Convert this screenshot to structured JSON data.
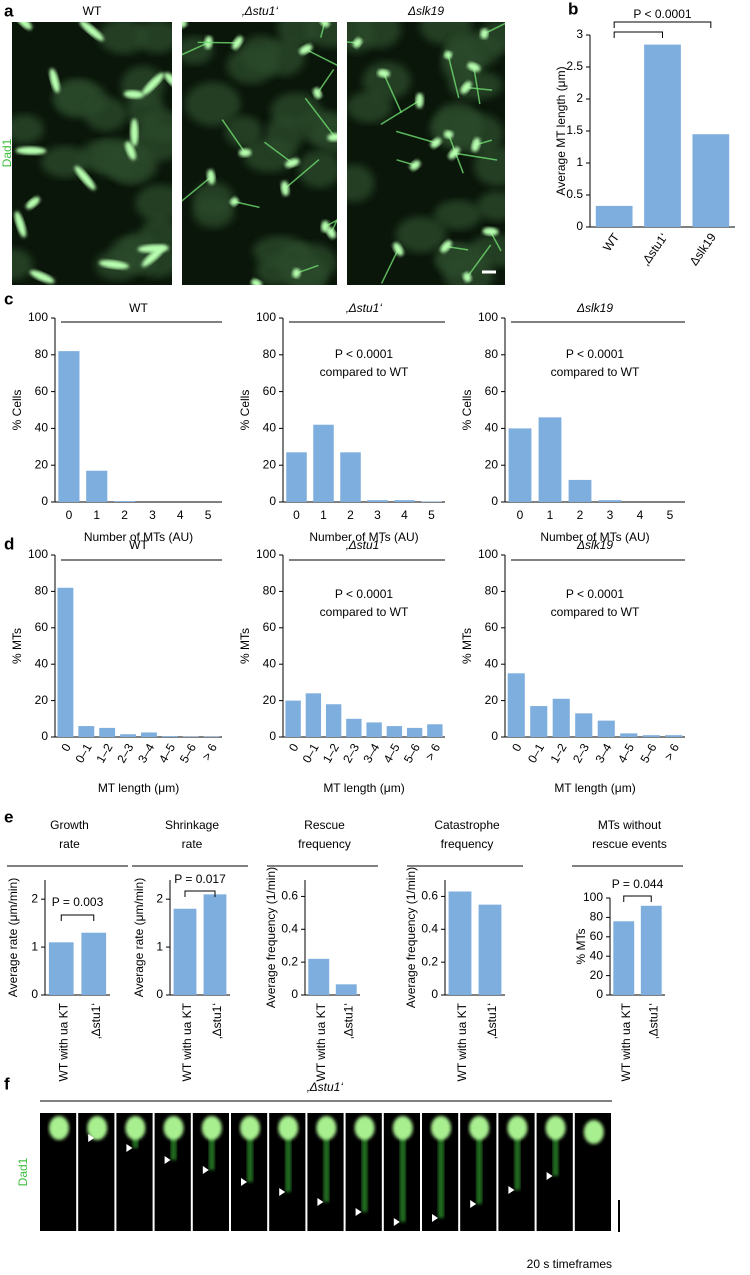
{
  "panel_labels": [
    "a",
    "b",
    "c",
    "d",
    "e",
    "f"
  ],
  "panel_a": {
    "labels": [
      "WT",
      "‚Δstu1‘",
      "Δslk19"
    ],
    "channel": "Dad1"
  },
  "chart_data": [
    {
      "type": "bar",
      "categories": [
        "WT",
        "‚Δstu1‘",
        "Δslk19"
      ],
      "values": [
        0.33,
        2.85,
        1.45
      ],
      "color": "#7eaedd",
      "ylim": [
        0,
        3
      ],
      "yticks": [
        0,
        0.5,
        1,
        1.5,
        2,
        2.5,
        3
      ],
      "ylabel": "Average MT length (μm)",
      "annotations": [
        "P < 0.0001"
      ]
    },
    {
      "type": "bar",
      "title": "WT",
      "categories": [
        "0",
        "1",
        "2",
        "3",
        "4",
        "5"
      ],
      "values": [
        82,
        17,
        0.5,
        0,
        0,
        0
      ],
      "color": "#7eaedd",
      "ylim": [
        0,
        100
      ],
      "yticks": [
        0,
        20,
        40,
        60,
        80,
        100
      ],
      "ylabel": "% Cells",
      "xlabel": "Number of MTs (AU)"
    },
    {
      "type": "bar",
      "title": "‚Δstu1‘",
      "categories": [
        "0",
        "1",
        "2",
        "3",
        "4",
        "5"
      ],
      "values": [
        27,
        42,
        27,
        1,
        1,
        0.3
      ],
      "color": "#7eaedd",
      "ylim": [
        0,
        100
      ],
      "yticks": [
        0,
        20,
        40,
        60,
        80,
        100
      ],
      "ylabel": "% Cells",
      "xlabel": "Number of MTs (AU)",
      "annotations": [
        "P < 0.0001",
        "compared to WT"
      ]
    },
    {
      "type": "bar",
      "title": "Δslk19",
      "categories": [
        "0",
        "1",
        "2",
        "3",
        "4",
        "5"
      ],
      "values": [
        40,
        46,
        12,
        1,
        0,
        0
      ],
      "color": "#7eaedd",
      "ylim": [
        0,
        100
      ],
      "yticks": [
        0,
        20,
        40,
        60,
        80,
        100
      ],
      "ylabel": "% Cells",
      "xlabel": "Number of MTs (AU)",
      "annotations": [
        "P < 0.0001",
        "compared to WT"
      ]
    },
    {
      "type": "bar",
      "title": "WT",
      "categories": [
        "0",
        "0–1",
        "1–2",
        "2–3",
        "3–4",
        "4–5",
        "5–6",
        "> 6"
      ],
      "values": [
        82,
        6,
        5,
        1.5,
        2.5,
        0.5,
        0.2,
        0.2
      ],
      "color": "#7eaedd",
      "ylim": [
        0,
        100
      ],
      "yticks": [
        0,
        20,
        40,
        60,
        80,
        100
      ],
      "ylabel": "% MTs",
      "xlabel": "MT length (μm)"
    },
    {
      "type": "bar",
      "title": "‚Δstu1‘",
      "categories": [
        "0",
        "0–1",
        "1–2",
        "2–3",
        "3–4",
        "4–5",
        "5–6",
        "> 6"
      ],
      "values": [
        20,
        24,
        18,
        10,
        8,
        6,
        5,
        7
      ],
      "color": "#7eaedd",
      "ylim": [
        0,
        100
      ],
      "yticks": [
        0,
        20,
        40,
        60,
        80,
        100
      ],
      "ylabel": "% MTs",
      "xlabel": "MT length (μm)",
      "annotations": [
        "P < 0.0001",
        "compared to WT"
      ]
    },
    {
      "type": "bar",
      "title": "Δslk19",
      "categories": [
        "0",
        "0–1",
        "1–2",
        "2–3",
        "3–4",
        "4–5",
        "5–6",
        "> 6"
      ],
      "values": [
        35,
        17,
        21,
        13,
        9,
        2,
        1,
        1
      ],
      "color": "#7eaedd",
      "ylim": [
        0,
        100
      ],
      "yticks": [
        0,
        20,
        40,
        60,
        80,
        100
      ],
      "ylabel": "% MTs",
      "xlabel": "MT length (μm)",
      "annotations": [
        "P < 0.0001",
        "compared to WT"
      ]
    },
    {
      "type": "bar",
      "title": [
        "Growth",
        "rate"
      ],
      "categories": [
        "WT with ua KT",
        "‚Δstu1‘"
      ],
      "values": [
        1.1,
        1.3
      ],
      "color": "#7eaedd",
      "ylim": [
        0,
        2.4
      ],
      "yticks": [
        0,
        1,
        2
      ],
      "ylabel": "Average rate (μm/min)",
      "annotations": [
        "P = 0.003"
      ]
    },
    {
      "type": "bar",
      "title": [
        "Shrinkage",
        "rate"
      ],
      "categories": [
        "WT with ua KT",
        "‚Δstu1‘"
      ],
      "values": [
        1.8,
        2.1
      ],
      "color": "#7eaedd",
      "ylim": [
        0,
        2.4
      ],
      "yticks": [
        0,
        1,
        2
      ],
      "ylabel": "Average rate (μm/min)",
      "annotations": [
        "P = 0.017"
      ]
    },
    {
      "type": "bar",
      "title": [
        "Rescue",
        "frequency"
      ],
      "categories": [
        "WT with ua KT",
        "‚Δstu1‘"
      ],
      "values": [
        0.22,
        0.065
      ],
      "color": "#7eaedd",
      "ylim": [
        0,
        0.7
      ],
      "yticks": [
        0,
        0.2,
        0.4,
        0.6
      ],
      "ylabel": "Average frequency (1/min)"
    },
    {
      "type": "bar",
      "title": [
        "Catastrophe",
        "frequency"
      ],
      "categories": [
        "WT with ua KT",
        "‚Δstu1‘"
      ],
      "values": [
        0.63,
        0.55
      ],
      "color": "#7eaedd",
      "ylim": [
        0,
        0.7
      ],
      "yticks": [
        0,
        0.2,
        0.4,
        0.6
      ],
      "ylabel": "Average frequency (1/min)"
    },
    {
      "type": "bar",
      "title": [
        "MTs without",
        "rescue events"
      ],
      "categories": [
        "WT with ua KT",
        "‚Δstu1‘"
      ],
      "values": [
        76,
        92
      ],
      "color": "#7eaedd",
      "ylim": [
        0,
        100
      ],
      "yticks": [
        0,
        20,
        40,
        60,
        80,
        100
      ],
      "ylabel": "% MTs",
      "annotations": [
        "P = 0.044"
      ]
    }
  ],
  "panel_f": {
    "title": "‚Δstu1‘",
    "channel": "Dad1",
    "caption": "20 s timeframes"
  }
}
